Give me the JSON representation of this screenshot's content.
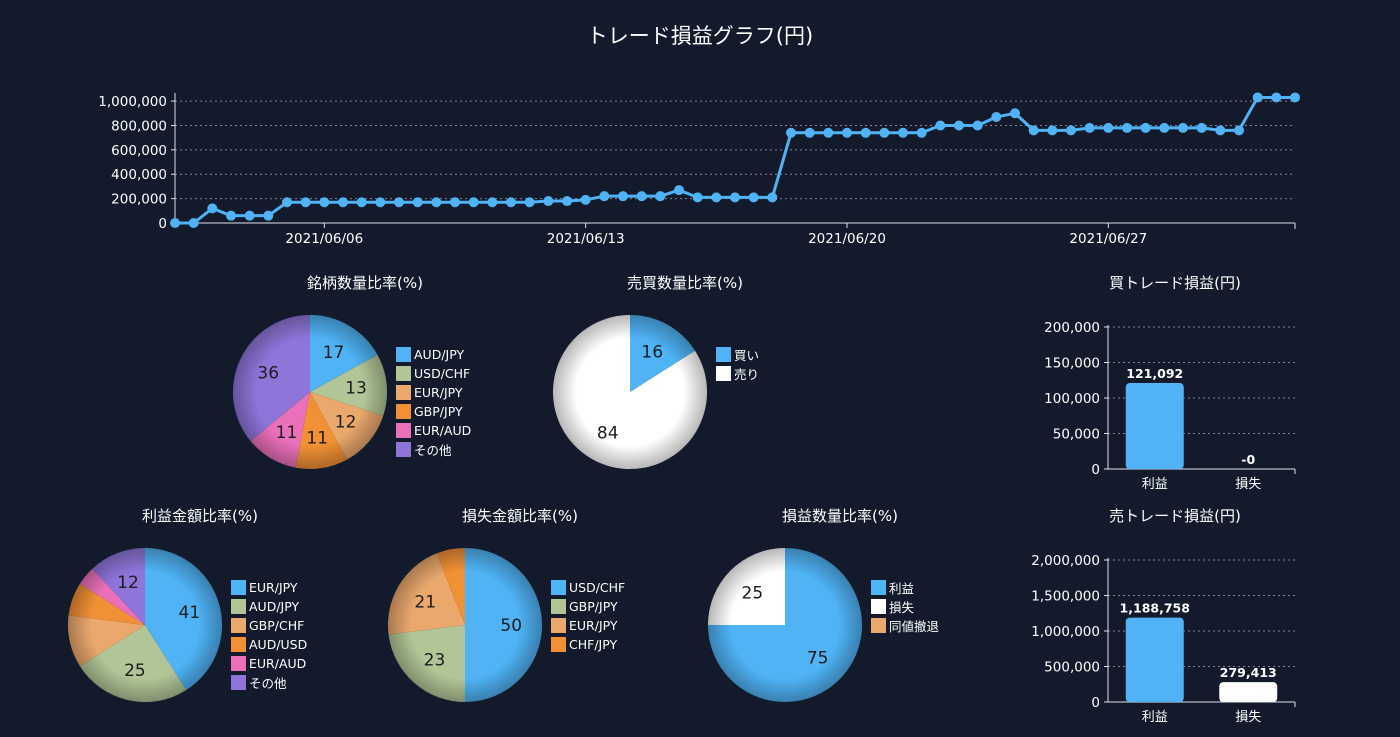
{
  "title": "トレード損益グラフ(円)",
  "chart_data": [
    {
      "id": "line",
      "type": "line",
      "title": "トレード損益グラフ(円)",
      "xlabel": "",
      "ylabel": "",
      "ylim": [
        0,
        1050000
      ],
      "yticks": [
        0,
        200000,
        400000,
        600000,
        800000,
        1000000
      ],
      "ytick_labels": [
        "0",
        "200,000",
        "400,000",
        "600,000",
        "800,000",
        "1,000,000"
      ],
      "xtick_labels": [
        {
          "label": "2021/06/06",
          "index": 8
        },
        {
          "label": "2021/06/13",
          "index": 22
        },
        {
          "label": "2021/06/20",
          "index": 36
        },
        {
          "label": "2021/06/27",
          "index": 50
        }
      ],
      "grid": true,
      "color": "#4fb3f5",
      "values": [
        0,
        0,
        120000,
        60000,
        60000,
        60000,
        170000,
        170000,
        170000,
        170000,
        170000,
        170000,
        170000,
        170000,
        170000,
        170000,
        170000,
        170000,
        170000,
        170000,
        180000,
        180000,
        190000,
        220000,
        220000,
        220000,
        220000,
        270000,
        210000,
        210000,
        210000,
        210000,
        210000,
        740000,
        740000,
        740000,
        740000,
        740000,
        740000,
        740000,
        740000,
        800000,
        800000,
        800000,
        870000,
        900000,
        760000,
        760000,
        760000,
        780000,
        780000,
        780000,
        780000,
        780000,
        780000,
        780000,
        760000,
        760000,
        1030000,
        1030000,
        1030000
      ]
    },
    {
      "id": "pie1",
      "type": "pie",
      "title": "銘柄数量比率(%)",
      "labels": [
        "AUD/JPY",
        "USD/CHF",
        "EUR/JPY",
        "GBP/JPY",
        "EUR/AUD",
        "その他"
      ],
      "values": [
        17,
        13,
        12,
        11,
        11,
        36
      ],
      "colors": [
        "#4fb3f5",
        "#b1c597",
        "#eaa86d",
        "#f19035",
        "#ea70ba",
        "#8f74d9"
      ]
    },
    {
      "id": "pie2",
      "type": "pie",
      "title": "売買数量比率(%)",
      "labels": [
        "買い",
        "売り"
      ],
      "values": [
        16,
        84
      ],
      "colors": [
        "#4fb3f5",
        "#ffffff"
      ]
    },
    {
      "id": "pie3",
      "type": "pie",
      "title": "利益金額比率(%)",
      "labels": [
        "EUR/JPY",
        "AUD/JPY",
        "GBP/CHF",
        "AUD/USD",
        "EUR/AUD",
        "その他"
      ],
      "values": [
        41,
        25,
        11,
        7,
        4,
        12
      ],
      "display_values": [
        "41",
        "25",
        "",
        "",
        "",
        "12"
      ],
      "colors": [
        "#4fb3f5",
        "#b1c597",
        "#eaa86d",
        "#f19035",
        "#ea70ba",
        "#8f74d9"
      ]
    },
    {
      "id": "pie4",
      "type": "pie",
      "title": "損失金額比率(%)",
      "labels": [
        "USD/CHF",
        "GBP/JPY",
        "EUR/JPY",
        "CHF/JPY"
      ],
      "values": [
        50,
        23,
        21,
        6
      ],
      "display_values": [
        "50",
        "23",
        "21",
        ""
      ],
      "colors": [
        "#4fb3f5",
        "#b1c597",
        "#eaa86d",
        "#f19035"
      ]
    },
    {
      "id": "pie5",
      "type": "pie",
      "title": "損益数量比率(%)",
      "labels": [
        "利益",
        "損失",
        "同値撤退"
      ],
      "values": [
        75,
        25,
        0
      ],
      "display_values": [
        "75",
        "25",
        ""
      ],
      "colors": [
        "#4fb3f5",
        "#ffffff",
        "#eaa86d"
      ]
    },
    {
      "id": "bar1",
      "type": "bar",
      "title": "買トレード損益(円)",
      "categories": [
        "利益",
        "損失"
      ],
      "values": [
        121092,
        0
      ],
      "value_labels": [
        "121,092",
        "-0"
      ],
      "colors": [
        "#4fb3f5",
        "#ffffff"
      ],
      "ylim": [
        0,
        200000
      ],
      "yticks": [
        0,
        50000,
        100000,
        150000,
        200000
      ],
      "ytick_labels": [
        "0",
        "50,000",
        "100,000",
        "150,000",
        "200,000"
      ],
      "grid": true
    },
    {
      "id": "bar2",
      "type": "bar",
      "title": "売トレード損益(円)",
      "categories": [
        "利益",
        "損失"
      ],
      "values": [
        1188758,
        279413
      ],
      "value_labels": [
        "1,188,758",
        "279,413"
      ],
      "colors": [
        "#4fb3f5",
        "#ffffff"
      ],
      "ylim": [
        0,
        2000000
      ],
      "yticks": [
        0,
        500000,
        1000000,
        1500000,
        2000000
      ],
      "ytick_labels": [
        "0",
        "500,000",
        "1,000,000",
        "1,500,000",
        "2,000,000"
      ],
      "grid": true
    }
  ]
}
